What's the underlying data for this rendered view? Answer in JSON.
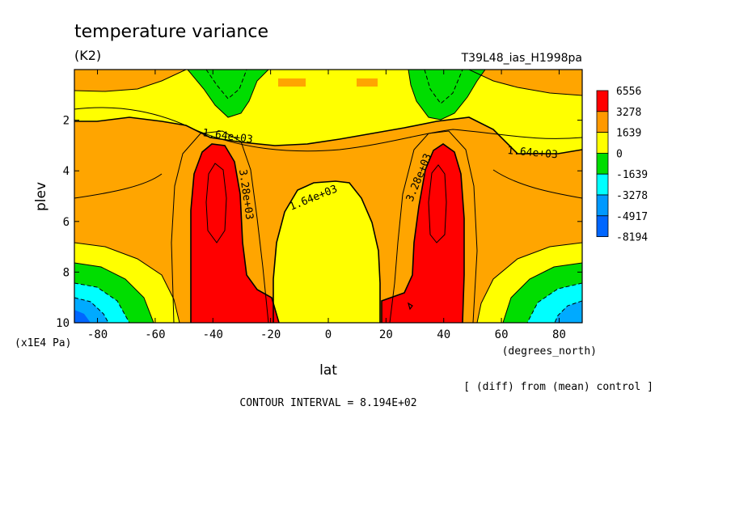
{
  "chart_data": {
    "type": "contour",
    "title": "temperature variance",
    "units": "(K2)",
    "run_label": "T39L48_ias_H1998pa",
    "xlabel": "lat",
    "x_units": "(degrees_north)",
    "ylabel": "plev",
    "y_units": "(x1E4 Pa)",
    "xlim": [
      -88,
      88
    ],
    "ylim": [
      0,
      10
    ],
    "y_inverted": true,
    "x_ticks": [
      "-80",
      "-60",
      "-40",
      "-20",
      "0",
      "20",
      "40",
      "60",
      "80"
    ],
    "y_ticks": [
      "2",
      "4",
      "6",
      "8",
      "10"
    ],
    "x_tick_values": [
      -80,
      -60,
      -40,
      -20,
      0,
      20,
      40,
      60,
      80
    ],
    "y_tick_values": [
      2,
      4,
      6,
      8,
      10
    ],
    "contour_interval": "CONTOUR INTERVAL = 8.194E+02",
    "note": "[ (diff) from (mean) control ]",
    "contour_labels": [
      "1.64e+03",
      "1.64e+03",
      "1.64e+03",
      "3.28e+03",
      "3.28e+03"
    ],
    "legend": {
      "levels": [
        "6556",
        "3278",
        "1639",
        "0",
        "-1639",
        "-3278",
        "-4917",
        "-8194"
      ],
      "colors": [
        "#ff0000",
        "#ff9900",
        "#ffff00",
        "#00dd00",
        "#00ffff",
        "#0099ff",
        "#0066ff"
      ],
      "placement": "right"
    },
    "fill_colors": {
      "red": "#ff0000",
      "orange": "#ffa500",
      "yellow": "#ffff00",
      "green": "#00dd00",
      "cyan": "#00ffff",
      "lightblue": "#00aaff",
      "blue": "#0066ff"
    }
  }
}
